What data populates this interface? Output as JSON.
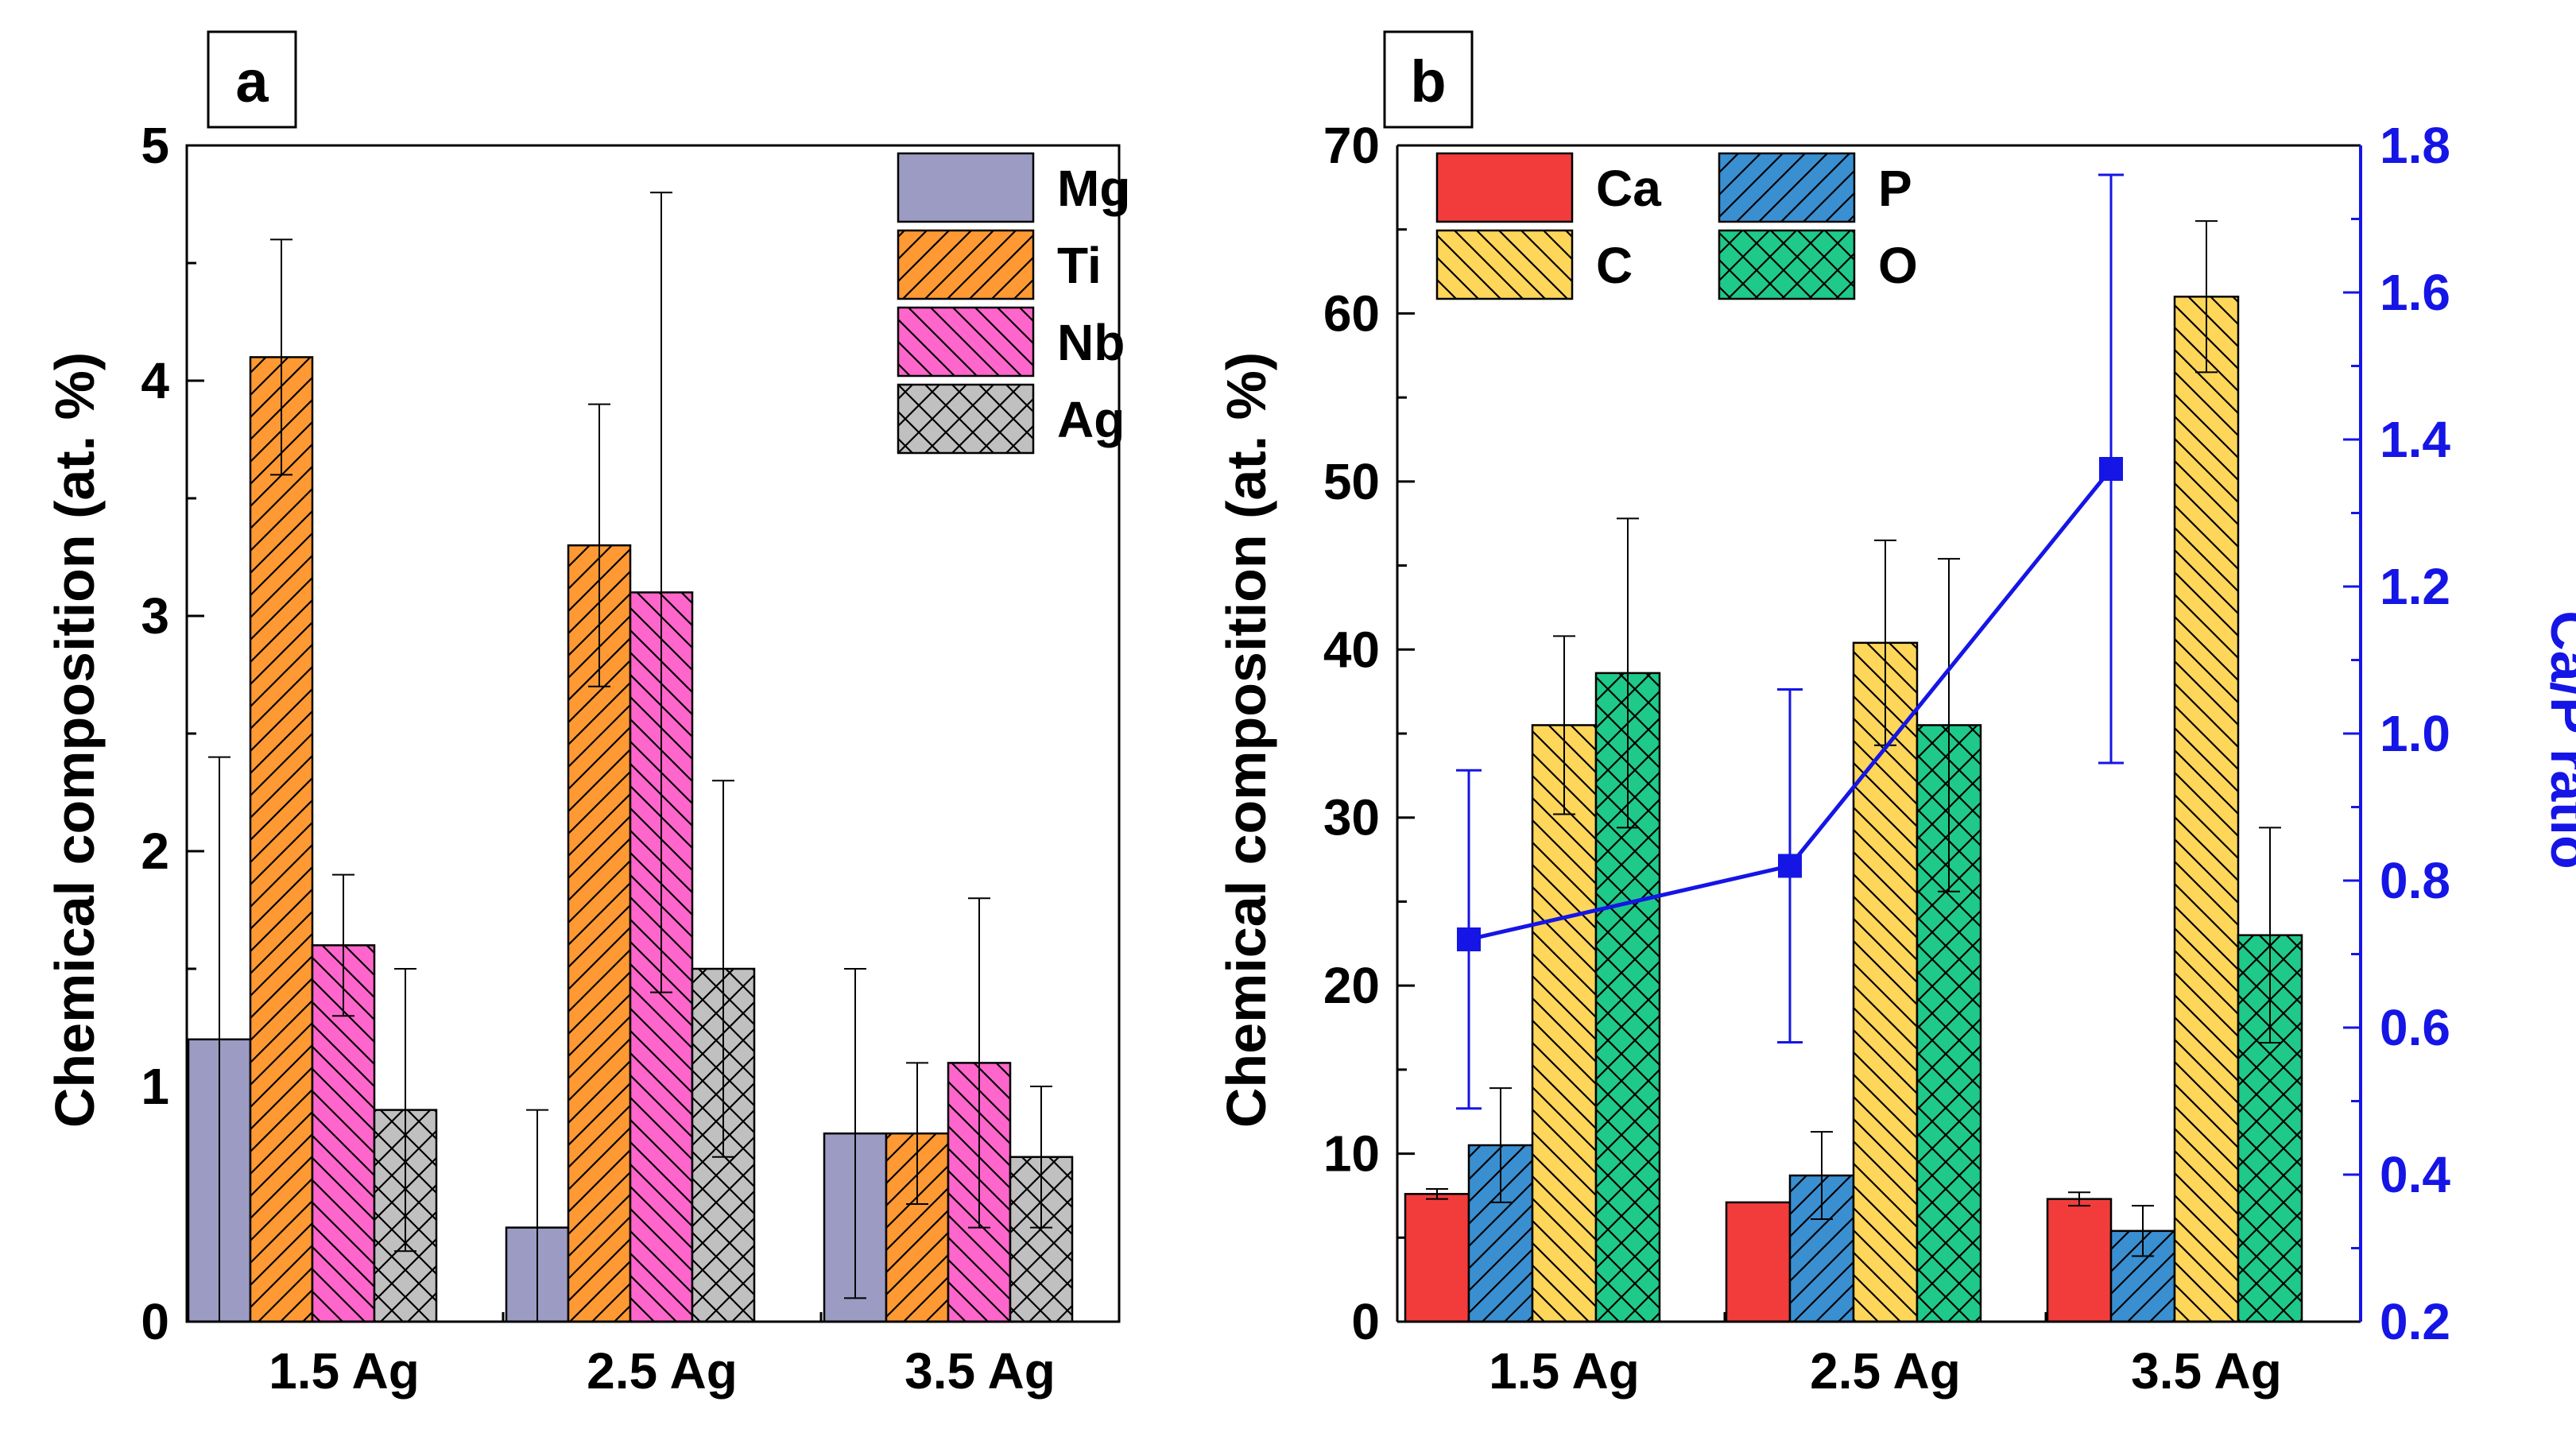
{
  "chart_data": [
    {
      "panel_label": "a",
      "type": "bar",
      "categories": [
        "1.5 Ag",
        "2.5 Ag",
        "3.5 Ag"
      ],
      "ylabel": "Chemical composition (at. %)",
      "ylim": [
        0,
        5
      ],
      "yticks": [
        "0",
        "1",
        "2",
        "3",
        "4",
        "5"
      ],
      "legend_position": "top-right",
      "series": [
        {
          "name": "Mg",
          "color": "#9b9bc3",
          "pattern": "none",
          "values": [
            1.2,
            0.4,
            0.8
          ],
          "errors": [
            1.2,
            0.5,
            0.7
          ]
        },
        {
          "name": "Ti",
          "color": "#ff9933",
          "pattern": "forward",
          "values": [
            4.1,
            3.3,
            0.8
          ],
          "errors": [
            0.5,
            0.6,
            0.3
          ]
        },
        {
          "name": "Nb",
          "color": "#ff66cc",
          "pattern": "back",
          "values": [
            1.6,
            3.1,
            1.1
          ],
          "errors": [
            0.3,
            1.7,
            0.7
          ]
        },
        {
          "name": "Ag",
          "color": "#c0c0c0",
          "pattern": "cross",
          "values": [
            0.9,
            1.5,
            0.7
          ],
          "errors": [
            0.6,
            0.8,
            0.3
          ]
        }
      ]
    },
    {
      "panel_label": "b",
      "type": "bar",
      "categories": [
        "1.5 Ag",
        "2.5 Ag",
        "3.5 Ag"
      ],
      "ylabel": "Chemical composition (at. %)",
      "ylim": [
        0,
        70
      ],
      "yticks": [
        "0",
        "10",
        "20",
        "30",
        "40",
        "50",
        "60",
        "70"
      ],
      "y2label": "Ca/P ratio",
      "y2lim": [
        0.2,
        1.8
      ],
      "y2ticks": [
        "0.2",
        "0.4",
        "0.6",
        "0.8",
        "1.0",
        "1.2",
        "1.4",
        "1.6",
        "1.8"
      ],
      "legend_position": "top-left",
      "series": [
        {
          "name": "Ca",
          "color": "#f23c3c",
          "pattern": "none",
          "values": [
            7.6,
            7.1,
            7.3
          ],
          "errors": [
            0.3,
            0.0,
            0.4
          ]
        },
        {
          "name": "P",
          "color": "#3a8fd1",
          "pattern": "forward",
          "values": [
            10.5,
            8.7,
            5.4
          ],
          "errors": [
            3.4,
            2.6,
            1.5
          ]
        },
        {
          "name": "C",
          "color": "#fdd65a",
          "pattern": "back",
          "values": [
            35.5,
            40.4,
            61.0
          ],
          "errors": [
            5.3,
            6.1,
            4.5
          ]
        },
        {
          "name": "O",
          "color": "#1fc98a",
          "pattern": "cross",
          "values": [
            38.6,
            35.5,
            23.0
          ],
          "errors": [
            9.2,
            9.9,
            6.4
          ]
        }
      ],
      "line_series": {
        "name": "Ca/P ratio",
        "color": "#1515e6",
        "values": [
          0.72,
          0.82,
          1.36
        ],
        "errors": [
          0.23,
          0.24,
          0.4
        ]
      }
    }
  ]
}
